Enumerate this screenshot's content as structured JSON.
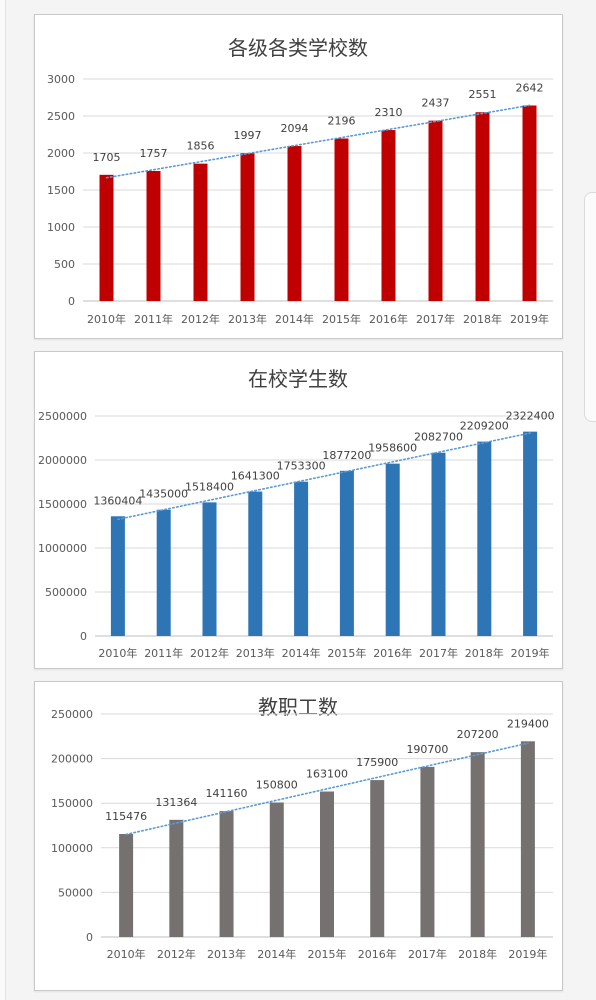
{
  "chart_data": [
    {
      "type": "bar",
      "title": "各级各类学校数",
      "categories": [
        "2010年",
        "2011年",
        "2012年",
        "2013年",
        "2014年",
        "2015年",
        "2016年",
        "2017年",
        "2018年",
        "2019年"
      ],
      "values": [
        1705,
        1757,
        1856,
        1997,
        2094,
        2196,
        2310,
        2437,
        2551,
        2642
      ],
      "yticks": [
        "0",
        "500",
        "1000",
        "1500",
        "2000",
        "2500",
        "3000"
      ],
      "ylim": [
        0,
        3000
      ],
      "color": "#c00000",
      "trendline": true,
      "trend_color": "#5b9bd5",
      "grid": true
    },
    {
      "type": "bar",
      "title": "在校学生数",
      "categories": [
        "2010年",
        "2011年",
        "2012年",
        "2013年",
        "2014年",
        "2015年",
        "2016年",
        "2017年",
        "2018年",
        "2019年"
      ],
      "values": [
        1360404,
        1435000,
        1518400,
        1641300,
        1753300,
        1877200,
        1958600,
        2082700,
        2209200,
        2322400
      ],
      "yticks": [
        "0",
        "500000",
        "1000000",
        "1500000",
        "2000000",
        "2500000"
      ],
      "ylim": [
        0,
        2500000
      ],
      "color": "#2e75b6",
      "trendline": true,
      "trend_color": "#5b9bd5",
      "grid": true
    },
    {
      "type": "bar",
      "title": "教职工数",
      "categories": [
        "2010年",
        "2012年",
        "2013年",
        "2014年",
        "2015年",
        "2016年",
        "2017年",
        "2018年",
        "2019年"
      ],
      "values": [
        115476,
        131364,
        141160,
        150800,
        163100,
        175900,
        190700,
        207200,
        219400
      ],
      "yticks": [
        "0",
        "50000",
        "100000",
        "150000",
        "200000",
        "250000"
      ],
      "ylim": [
        0,
        250000
      ],
      "color": "#767171",
      "trendline": true,
      "trend_color": "#5b9bd5",
      "grid": true
    }
  ]
}
